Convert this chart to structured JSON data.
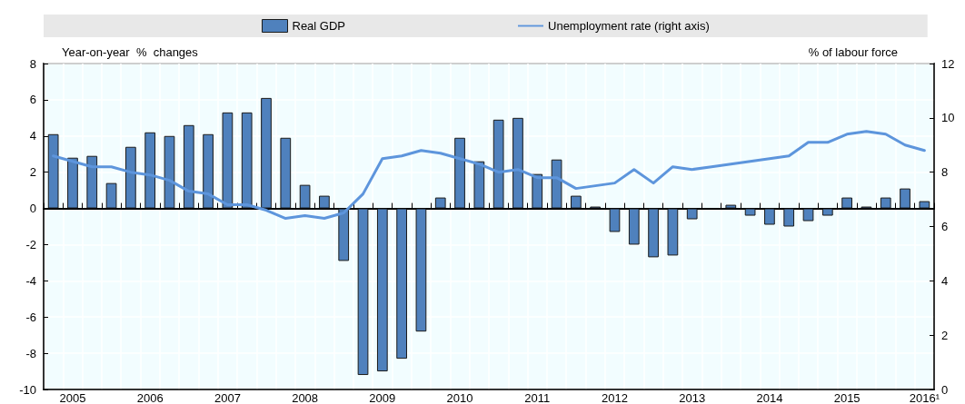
{
  "chart_data": {
    "type": "bar",
    "categories": [
      null,
      "2005",
      null,
      null,
      null,
      "2006",
      null,
      null,
      null,
      "2007",
      null,
      null,
      null,
      "2008",
      null,
      null,
      null,
      "2009",
      null,
      null,
      null,
      "2010",
      null,
      null,
      null,
      "2011",
      null,
      null,
      null,
      "2012",
      null,
      null,
      null,
      "2013",
      null,
      null,
      null,
      "2014",
      null,
      null,
      null,
      "2015",
      null,
      null,
      null,
      "2016¹"
    ],
    "series": [
      {
        "name": "Real GDP",
        "color": "#4f81bd",
        "values": [
          4.1,
          2.8,
          2.9,
          1.4,
          3.4,
          4.2,
          4.0,
          4.6,
          4.1,
          5.3,
          5.3,
          6.1,
          3.9,
          1.3,
          0.7,
          -2.9,
          -9.2,
          -9.0,
          -8.3,
          -6.8,
          0.6,
          3.9,
          2.6,
          4.9,
          5.0,
          1.9,
          2.7,
          0.7,
          0.1,
          -1.3,
          -2.0,
          -2.7,
          -2.6,
          -0.6,
          null,
          0.2,
          -0.4,
          -0.9,
          -1.0,
          -0.7,
          -0.4,
          0.6,
          0.1,
          0.6,
          1.1,
          0.4
        ]
      },
      {
        "name": "Unemployment rate (right axis)",
        "type": "line",
        "axis": "y2",
        "color": "#5d95dc",
        "values": [
          8.6,
          8.4,
          8.2,
          8.2,
          8.0,
          7.9,
          7.7,
          7.3,
          7.2,
          6.8,
          6.8,
          6.6,
          6.3,
          6.4,
          6.3,
          6.5,
          7.2,
          8.5,
          8.6,
          8.8,
          8.7,
          8.5,
          8.3,
          8.0,
          8.1,
          7.8,
          7.8,
          7.4,
          7.5,
          7.6,
          8.1,
          7.6,
          8.2,
          8.1,
          8.2,
          8.3,
          8.4,
          8.5,
          8.6,
          9.1,
          9.1,
          9.4,
          9.5,
          9.4,
          9.0,
          8.8
        ]
      }
    ],
    "ylabel": "Year-on-year  %  changes",
    "y2label": "% of labour force",
    "ylim": [
      -10,
      8
    ],
    "yticks": [
      -10,
      -8,
      -6,
      -4,
      -2,
      0,
      2,
      4,
      6,
      8
    ],
    "y2lim": [
      0,
      12
    ],
    "y2ticks": [
      0,
      2,
      4,
      6,
      8,
      10,
      12
    ],
    "grid": true,
    "legend": "top",
    "marker": "none"
  }
}
